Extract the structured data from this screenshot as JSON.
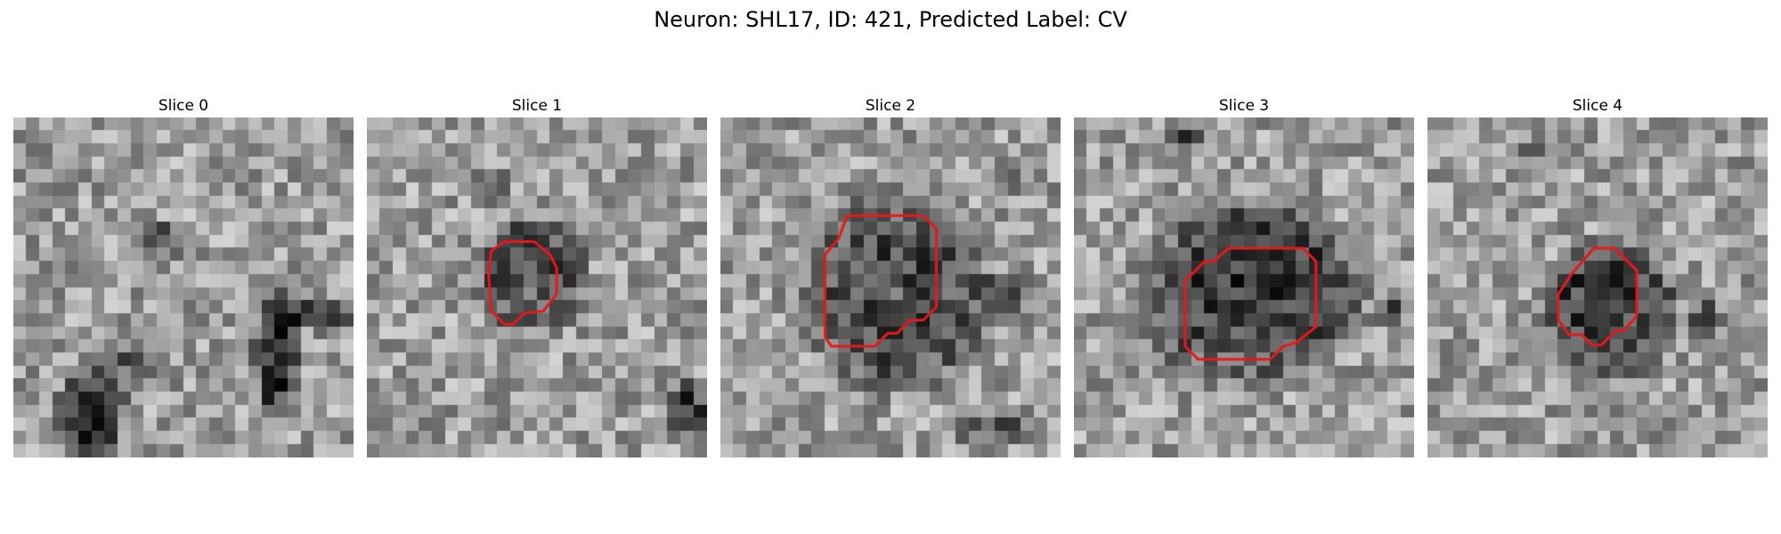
{
  "figure": {
    "title": "Neuron: SHL17, ID: 421, Predicted Label: CV"
  },
  "panels": [
    {
      "label": "Slice 0",
      "contour": false
    },
    {
      "label": "Slice 1",
      "contour": true
    },
    {
      "label": "Slice 2",
      "contour": true
    },
    {
      "label": "Slice 3",
      "contour": true
    },
    {
      "label": "Slice 4",
      "contour": true
    }
  ],
  "colors": {
    "contour": "#e31a1c",
    "background": "#ffffff"
  }
}
